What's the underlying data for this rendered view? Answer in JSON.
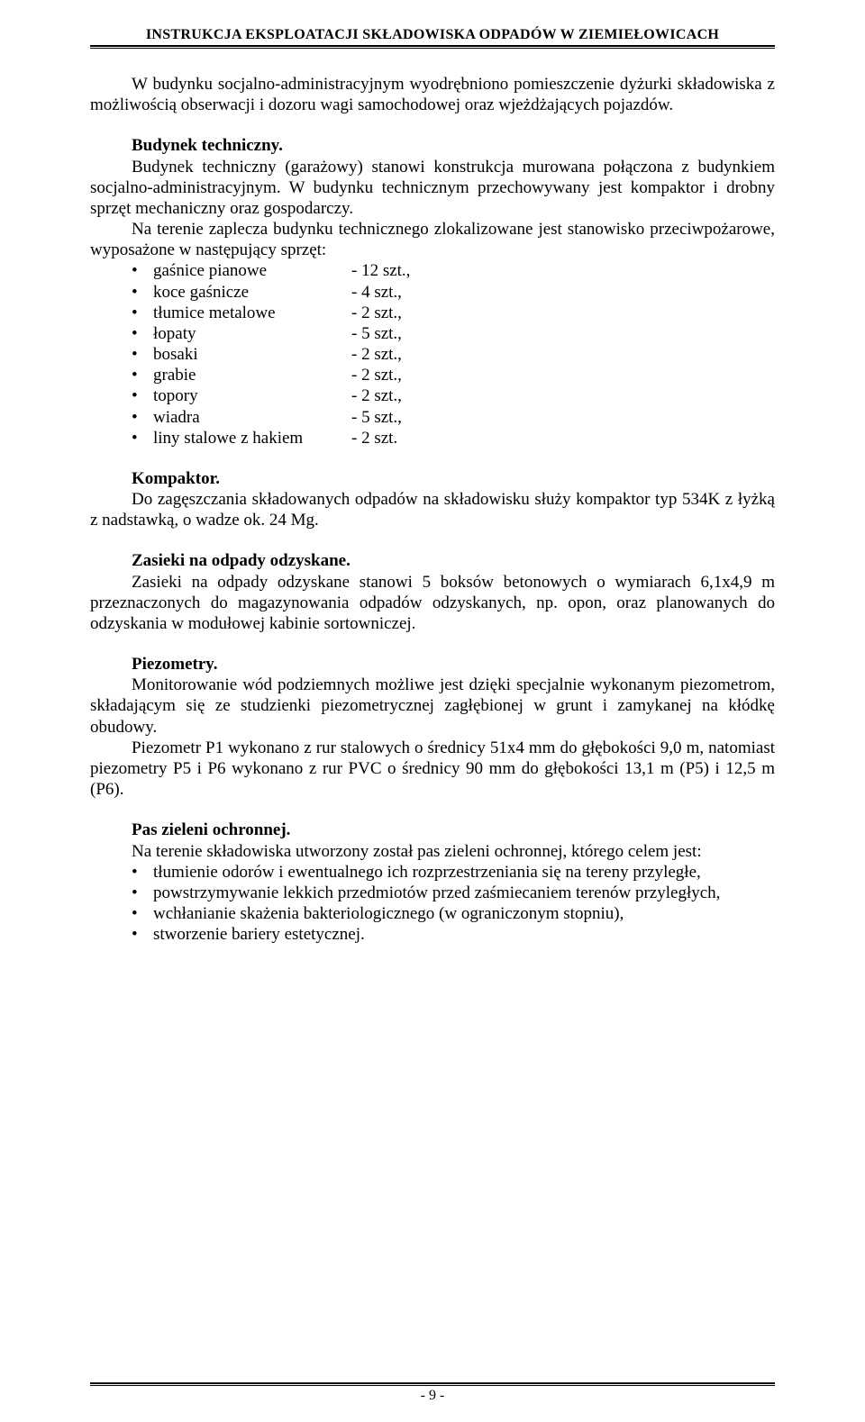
{
  "header": "INSTRUKCJA EKSPLOATACJI SKŁADOWISKA ODPADÓW W ZIEMIEŁOWICACH",
  "intro": "W budynku socjalno-administracyjnym wyodrębniono pomieszczenie dyżurki składowiska z możliwością obserwacji i dozoru wagi samochodowej oraz wjeżdżających pojazdów.",
  "sections": {
    "tech_building": {
      "heading": "Budynek techniczny.",
      "p1": "Budynek techniczny (garażowy) stanowi konstrukcja murowana połączona z budynkiem socjalno-administracyjnym. W budynku technicznym przechowywany jest kompaktor i drobny sprzęt mechaniczny oraz gospodarczy.",
      "p2": "Na terenie zaplecza budynku technicznego zlokalizowane jest stanowisko przeciwpożarowe, wyposażone w następujący sprzęt:"
    },
    "kompaktor": {
      "heading": "Kompaktor.",
      "p1": "Do zagęszczania składowanych odpadów na składowisku służy kompaktor typ 534K z łyżką z nadstawką, o wadze ok. 24 Mg."
    },
    "zasieki": {
      "heading": "Zasieki na odpady odzyskane.",
      "p1": "Zasieki na odpady odzyskane stanowi 5 boksów betonowych o wymiarach 6,1x4,9 m przeznaczonych do magazynowania odpadów odzyskanych, np. opon, oraz planowanych do odzyskania w modułowej kabinie sortowniczej."
    },
    "piezometry": {
      "heading": "Piezometry.",
      "p1": "Monitorowanie wód podziemnych możliwe jest dzięki specjalnie wykonanym piezometrom, składającym się ze studzienki piezometrycznej zagłębionej w grunt i zamykanej na kłódkę obudowy.",
      "p2": "Piezometr P1 wykonano z rur stalowych o średnicy 51x4 mm do głębokości 9,0 m, natomiast piezometry P5 i P6 wykonano z rur PVC o średnicy 90 mm do głębokości 13,1 m (P5) i 12,5 m (P6)."
    },
    "pas_zieleni": {
      "heading": "Pas zieleni ochronnej.",
      "p1": "Na terenie składowiska utworzony został pas zieleni ochronnej, którego celem jest:"
    }
  },
  "equipment": [
    {
      "name": "gaśnice pianowe",
      "qty": "- 12 szt.,"
    },
    {
      "name": "koce gaśnicze",
      "qty": "- 4 szt.,"
    },
    {
      "name": "tłumice metalowe",
      "qty": "- 2 szt.,"
    },
    {
      "name": "łopaty",
      "qty": "- 5 szt.,"
    },
    {
      "name": "bosaki",
      "qty": "- 2 szt.,"
    },
    {
      "name": "grabie",
      "qty": "- 2 szt.,"
    },
    {
      "name": "topory",
      "qty": "- 2 szt.,"
    },
    {
      "name": "wiadra",
      "qty": "- 5 szt.,"
    },
    {
      "name": "liny stalowe z hakiem",
      "qty": "- 2 szt."
    }
  ],
  "greenbelt_aims": [
    "tłumienie odorów i ewentualnego ich rozprzestrzeniania się na tereny przyległe,",
    "powstrzymywanie lekkich przedmiotów przed zaśmiecaniem terenów przyległych,",
    "wchłanianie skażenia bakteriologicznego (w ograniczonym stopniu),",
    "stworzenie bariery estetycznej."
  ],
  "page_number": "- 9 -"
}
